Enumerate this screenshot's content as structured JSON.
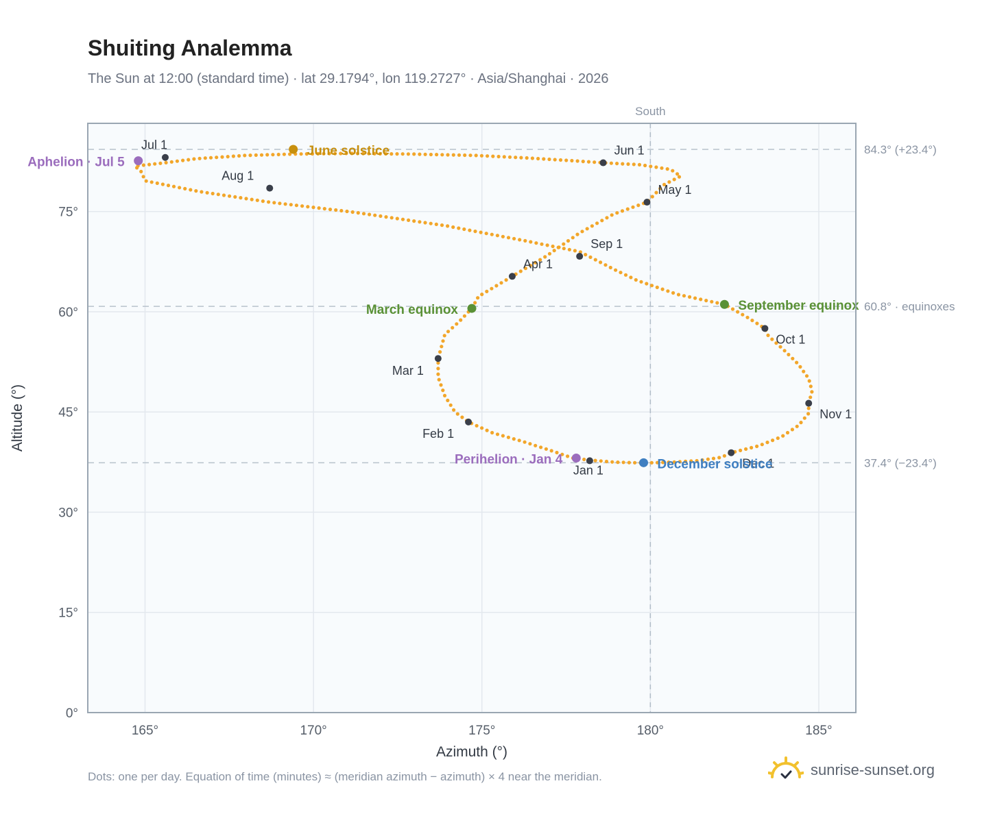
{
  "header": {
    "title": "Shuiting Analemma",
    "subtitle": "The Sun at 12:00 (standard time) · lat 29.1794°, lon 119.2727° · Asia/Shanghai · 2026"
  },
  "footer": {
    "note": "Dots: one per day. Equation of time (minutes) ≈ (meridian azimuth − azimuth) × 4 near the meridian.",
    "brand": "sunrise-sunset.org"
  },
  "colors": {
    "curve": "#f2a62a",
    "month_marker": "#3a3f4a",
    "june_solstice": "#c8900e",
    "december_solstice": "#3f7fc1",
    "equinox": "#5a9136",
    "apsis": "#9b6dbd",
    "reference_line": "#b8c2cc",
    "plot_bg": "#f8fbfd",
    "frame": "#9aa6b2",
    "brand_sun": "#f2c12e"
  },
  "chart_data": {
    "type": "scatter",
    "title": "Shuiting Analemma",
    "xlabel": "Azimuth (°)",
    "ylabel": "Altitude (°)",
    "xlim": [
      163.3,
      186.1
    ],
    "ylim": [
      0,
      88.2
    ],
    "xticks": [
      165,
      170,
      175,
      180,
      185
    ],
    "yticks": [
      0,
      15,
      30,
      45,
      60,
      75
    ],
    "xtick_suffix": "°",
    "ytick_suffix": "°",
    "grid": true,
    "meridian": {
      "azimuth": 180,
      "label": "South"
    },
    "reference_lines": [
      {
        "altitude": 84.3,
        "label": "84.3° (+23.4°)"
      },
      {
        "altitude": 60.8,
        "label": "60.8° · equinoxes"
      },
      {
        "altitude": 37.4,
        "label": "37.4° (−23.4°)"
      }
    ],
    "analemma_points": [
      [
        177.7,
        38.1
      ],
      [
        178.2,
        37.8
      ],
      [
        178.9,
        37.5
      ],
      [
        179.5,
        37.4
      ],
      [
        180.1,
        37.4
      ],
      [
        180.7,
        37.5
      ],
      [
        181.4,
        37.7
      ],
      [
        182.1,
        38.2
      ],
      [
        182.4,
        38.9
      ],
      [
        183.2,
        39.9
      ],
      [
        183.9,
        41.3
      ],
      [
        184.4,
        43.0
      ],
      [
        184.7,
        44.8
      ],
      [
        184.7,
        46.3
      ],
      [
        184.8,
        48.1
      ],
      [
        184.7,
        50.0
      ],
      [
        184.4,
        52.1
      ],
      [
        184.0,
        54.1
      ],
      [
        183.5,
        56.4
      ],
      [
        183.4,
        57.5
      ],
      [
        182.9,
        59.1
      ],
      [
        182.2,
        61.1
      ],
      [
        180.8,
        62.6
      ],
      [
        179.6,
        64.7
      ],
      [
        178.9,
        66.4
      ],
      [
        177.9,
        69.0
      ],
      [
        176.2,
        70.7
      ],
      [
        173.9,
        72.9
      ],
      [
        171.2,
        74.9
      ],
      [
        168.7,
        76.4
      ],
      [
        166.6,
        78.0
      ],
      [
        165.0,
        79.6
      ],
      [
        164.9,
        80.9
      ],
      [
        164.7,
        81.8
      ],
      [
        165.6,
        82.3
      ],
      [
        166.5,
        82.9
      ],
      [
        168.0,
        83.4
      ],
      [
        169.4,
        83.6
      ],
      [
        171.0,
        83.7
      ],
      [
        172.9,
        83.6
      ],
      [
        174.8,
        83.4
      ],
      [
        176.4,
        83.0
      ],
      [
        177.7,
        82.6
      ],
      [
        178.6,
        82.3
      ],
      [
        179.7,
        82.0
      ],
      [
        180.6,
        81.3
      ],
      [
        180.9,
        80.3
      ],
      [
        180.4,
        79.0
      ],
      [
        179.9,
        76.4
      ],
      [
        178.9,
        74.6
      ],
      [
        177.9,
        71.8
      ],
      [
        176.9,
        68.3
      ],
      [
        175.9,
        65.3
      ],
      [
        174.9,
        62.3
      ],
      [
        174.7,
        60.5
      ],
      [
        174.3,
        58.4
      ],
      [
        173.9,
        56.6
      ],
      [
        173.7,
        53.0
      ],
      [
        173.7,
        50.2
      ],
      [
        173.9,
        47.4
      ],
      [
        174.2,
        45.0
      ],
      [
        174.6,
        43.5
      ],
      [
        175.3,
        41.9
      ],
      [
        176.2,
        40.6
      ],
      [
        177.0,
        39.3
      ],
      [
        177.7,
        38.1
      ]
    ],
    "month_markers": [
      {
        "label": "Jan 1",
        "azimuth": 178.2,
        "altitude": 37.7
      },
      {
        "label": "Feb 1",
        "azimuth": 174.6,
        "altitude": 43.5
      },
      {
        "label": "Mar 1",
        "azimuth": 173.7,
        "altitude": 53.0
      },
      {
        "label": "Apr 1",
        "azimuth": 175.9,
        "altitude": 65.3
      },
      {
        "label": "May 1",
        "azimuth": 179.9,
        "altitude": 76.4
      },
      {
        "label": "Jun 1",
        "azimuth": 178.6,
        "altitude": 82.3
      },
      {
        "label": "Jul 1",
        "azimuth": 165.6,
        "altitude": 83.1
      },
      {
        "label": "Aug 1",
        "azimuth": 168.7,
        "altitude": 78.5
      },
      {
        "label": "Sep 1",
        "azimuth": 177.9,
        "altitude": 68.3
      },
      {
        "label": "Oct 1",
        "azimuth": 183.4,
        "altitude": 57.5
      },
      {
        "label": "Nov 1",
        "azimuth": 184.7,
        "altitude": 46.3
      },
      {
        "label": "Dec 1",
        "azimuth": 182.4,
        "altitude": 38.9
      }
    ],
    "events": [
      {
        "label": "June solstice",
        "azimuth": 169.4,
        "altitude": 84.3,
        "color": "#c8900e"
      },
      {
        "label": "December solstice",
        "azimuth": 179.8,
        "altitude": 37.4,
        "color": "#3f7fc1"
      },
      {
        "label": "March equinox",
        "azimuth": 174.7,
        "altitude": 60.5,
        "color": "#5a9136"
      },
      {
        "label": "September equinox",
        "azimuth": 182.2,
        "altitude": 61.1,
        "color": "#5a9136"
      },
      {
        "label": "Aphelion · Jul 5",
        "azimuth": 164.8,
        "altitude": 82.6,
        "color": "#9b6dbd"
      },
      {
        "label": "Perihelion · Jan 4",
        "azimuth": 177.8,
        "altitude": 38.1,
        "color": "#9b6dbd"
      }
    ]
  }
}
